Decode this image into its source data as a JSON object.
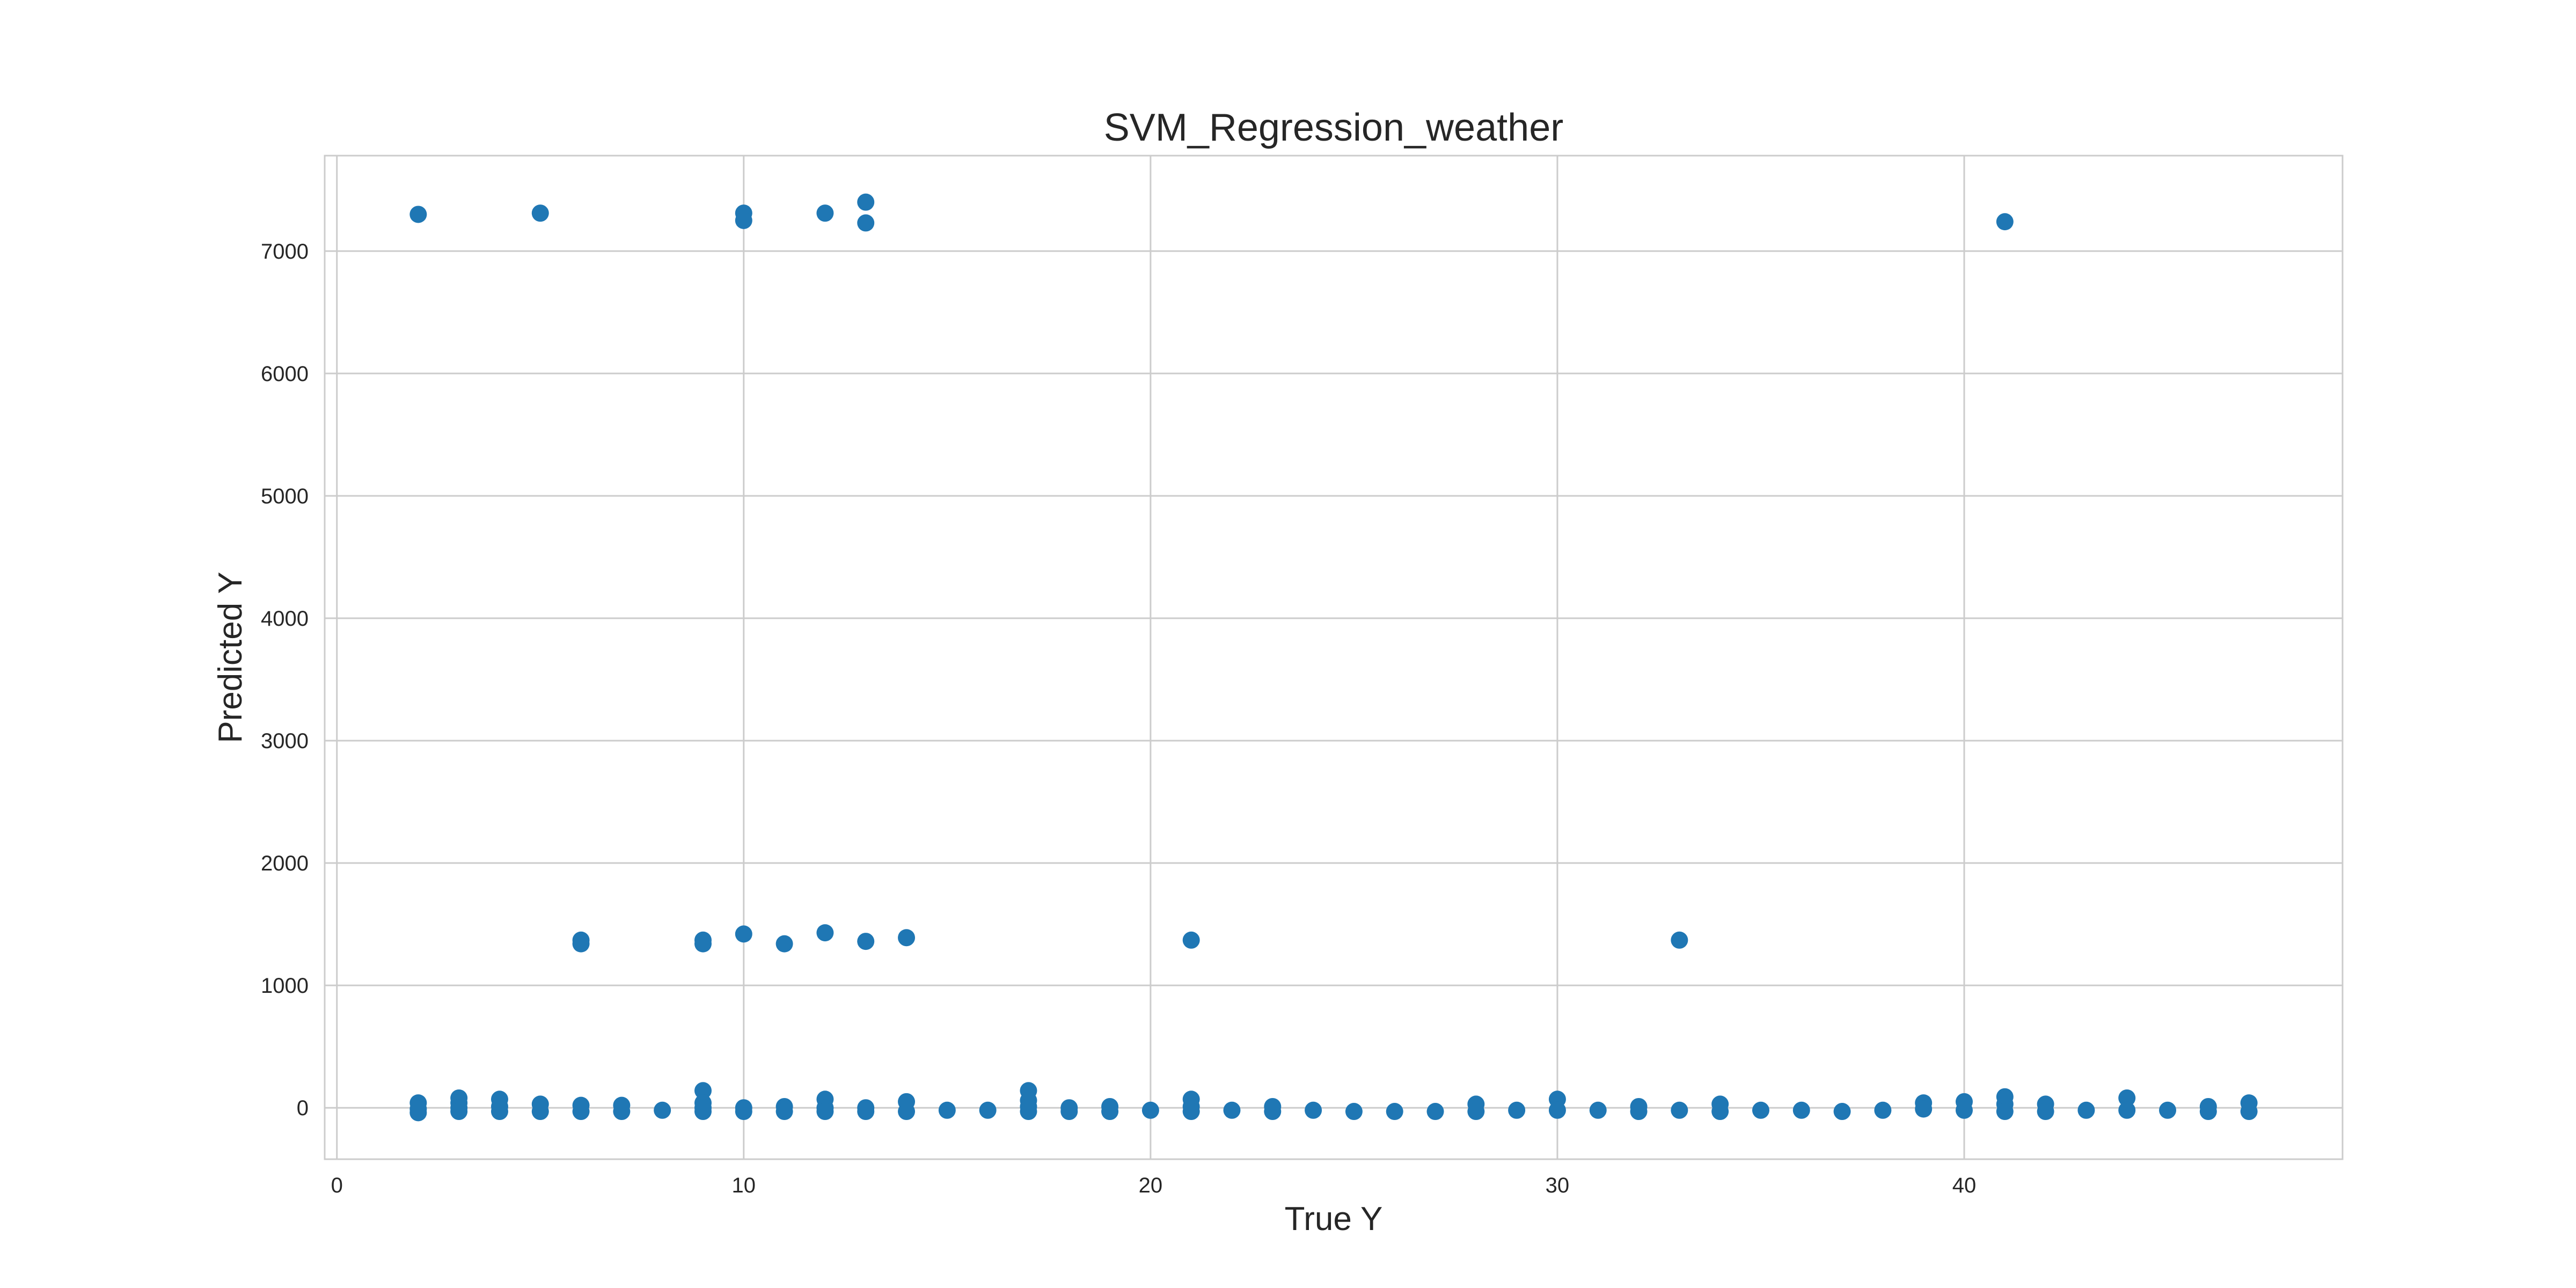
{
  "chart_data": {
    "type": "scatter",
    "title": "SVM_Regression_weather",
    "xlabel": "True Y",
    "ylabel": "Predicted Y",
    "xlim": [
      -0.3,
      49.3
    ],
    "ylim": [
      -420,
      7780
    ],
    "xticks": [
      0,
      10,
      20,
      30,
      40
    ],
    "yticks": [
      0,
      1000,
      2000,
      3000,
      4000,
      5000,
      6000,
      7000
    ],
    "grid": true,
    "legend": "none",
    "marker_color": "#1f77b4",
    "points": {
      "x": [
        2,
        5,
        10,
        10,
        12,
        13,
        13,
        41,
        6,
        6,
        9,
        9,
        10,
        11,
        12,
        13,
        14,
        21,
        33,
        2,
        2,
        2,
        3,
        3,
        3,
        3,
        4,
        4,
        4,
        5,
        5,
        6,
        6,
        7,
        7,
        8,
        9,
        9,
        9,
        9,
        10,
        10,
        11,
        11,
        12,
        12,
        12,
        13,
        13,
        14,
        14,
        15,
        16,
        17,
        17,
        17,
        17,
        18,
        18,
        19,
        19,
        20,
        21,
        21,
        21,
        22,
        23,
        23,
        24,
        25,
        26,
        27,
        28,
        28,
        29,
        30,
        30,
        31,
        32,
        32,
        33,
        34,
        34,
        35,
        36,
        37,
        38,
        39,
        39,
        40,
        40,
        41,
        41,
        41,
        42,
        42,
        43,
        44,
        44,
        45,
        46,
        46,
        47,
        47
      ],
      "y": [
        7300,
        7310,
        7310,
        7250,
        7310,
        7400,
        7230,
        7240,
        1370,
        1340,
        1370,
        1340,
        1420,
        1340,
        1430,
        1360,
        1390,
        1370,
        1370,
        40,
        -10,
        -40,
        80,
        40,
        0,
        -30,
        70,
        10,
        -30,
        30,
        -30,
        20,
        -30,
        20,
        -30,
        -20,
        140,
        40,
        0,
        -30,
        0,
        -30,
        10,
        -30,
        70,
        0,
        -30,
        0,
        -30,
        50,
        -30,
        -20,
        -20,
        140,
        60,
        10,
        -30,
        0,
        -30,
        10,
        -30,
        -20,
        70,
        10,
        -30,
        -20,
        10,
        -30,
        -20,
        -30,
        -30,
        -30,
        30,
        -30,
        -20,
        70,
        -20,
        -20,
        10,
        -30,
        -20,
        30,
        -30,
        -20,
        -20,
        -30,
        -20,
        40,
        -10,
        50,
        -20,
        90,
        30,
        -30,
        30,
        -30,
        -20,
        80,
        -20,
        -20,
        10,
        -30,
        40,
        -30
      ]
    }
  }
}
